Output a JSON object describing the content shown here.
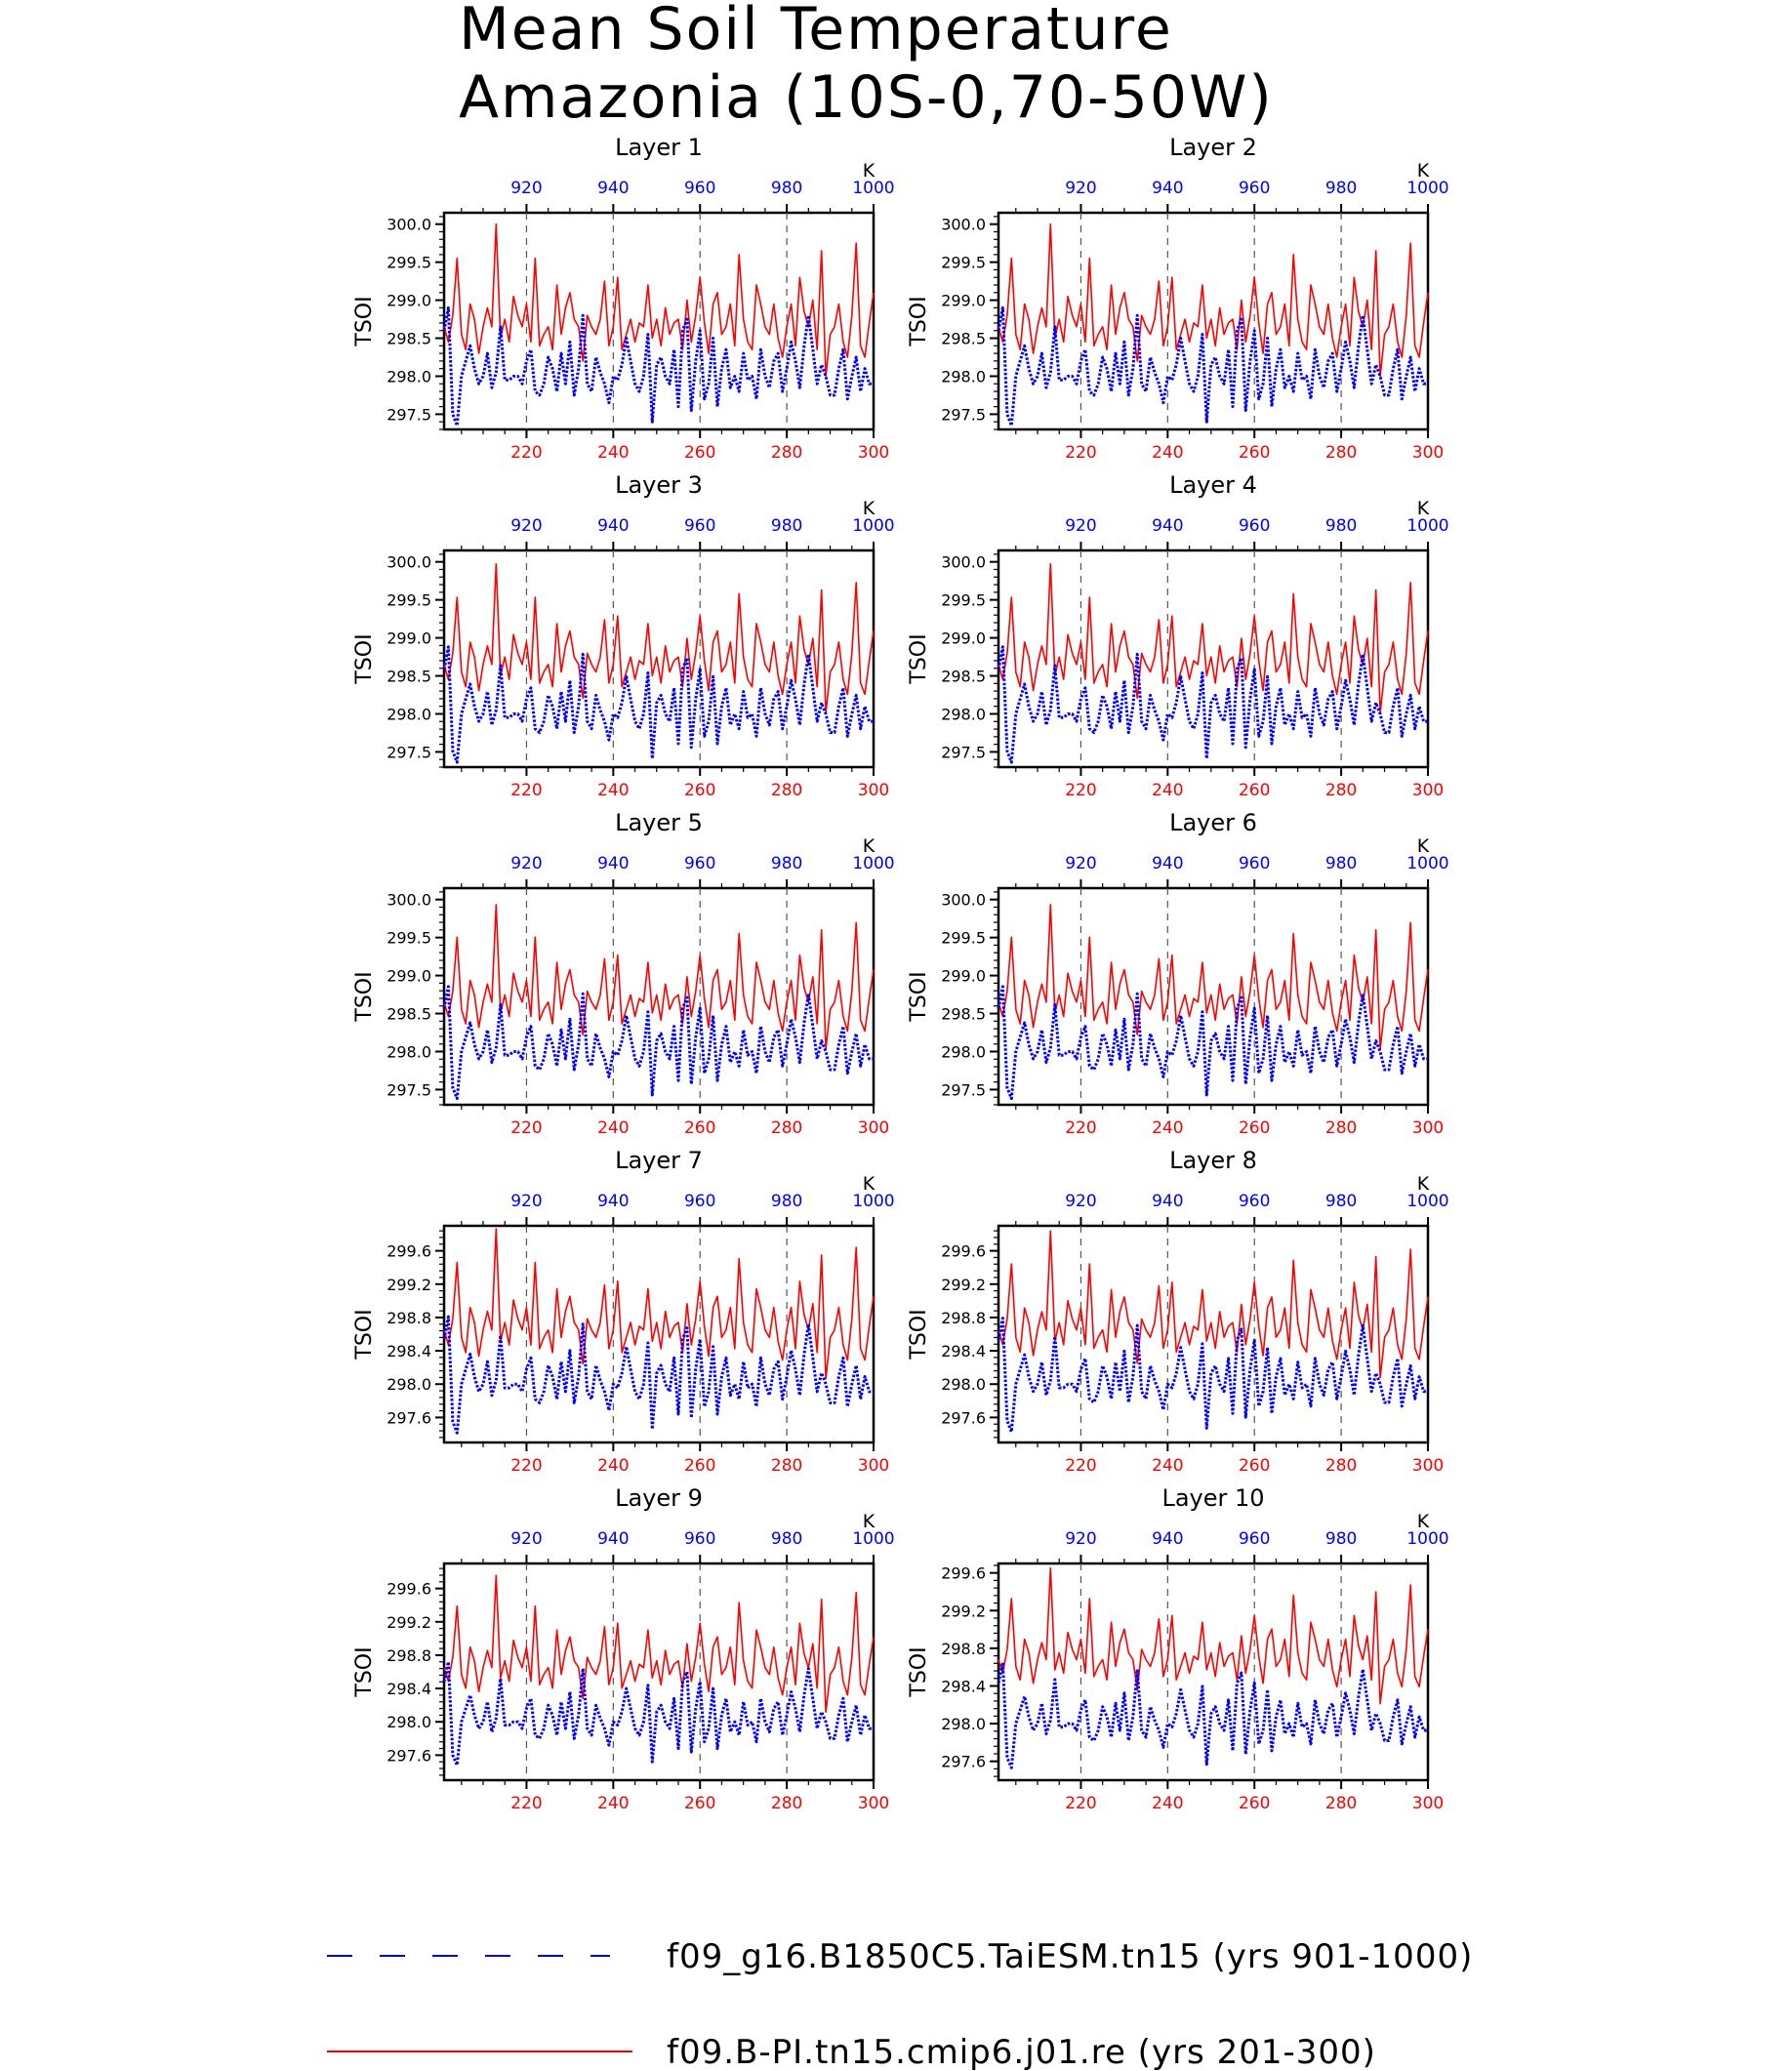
{
  "title": {
    "line1": "Mean Soil Temperature",
    "line2": "Amazonia (10S-0,70-50W)"
  },
  "legend": [
    {
      "label": "f09_g16.B1850C5.TaiESM.tn15 (yrs 901-1000)",
      "color": "#0000ff",
      "style": "dashed"
    },
    {
      "label": "f09.B-PI.tn15.cmip6.j01.re (yrs 201-300)",
      "color": "#ff0000",
      "style": "solid"
    }
  ],
  "chart_data": [
    {
      "type": "line",
      "title": "Layer 1",
      "ylabel": "TSOI",
      "unit_label": "K",
      "ylim": [
        297.3,
        300.15
      ],
      "yticks": [
        297.5,
        298.0,
        298.5,
        299.0,
        299.5,
        300.0
      ],
      "ytick_labels": [
        "297.5",
        "298.0",
        "298.5",
        "299.0",
        "299.5",
        "300.0"
      ],
      "xlim": [
        201,
        300
      ],
      "xticks": [
        220,
        240,
        260,
        280,
        300
      ],
      "x2lim": [
        901,
        1000
      ],
      "x2ticks": [
        920,
        940,
        960,
        980,
        1000
      ],
      "red_base": 298.65,
      "red_amp": 1.0,
      "blue_base": 298.0,
      "blue_amp": 1.0
    },
    {
      "type": "line",
      "title": "Layer 2",
      "ylabel": "TSOI",
      "unit_label": "K",
      "ylim": [
        297.3,
        300.15
      ],
      "yticks": [
        297.5,
        298.0,
        298.5,
        299.0,
        299.5,
        300.0
      ],
      "ytick_labels": [
        "297.5",
        "298.0",
        "298.5",
        "299.0",
        "299.5",
        "300.0"
      ],
      "xlim": [
        201,
        300
      ],
      "xticks": [
        220,
        240,
        260,
        280,
        300
      ],
      "x2lim": [
        901,
        1000
      ],
      "x2ticks": [
        920,
        940,
        960,
        980,
        1000
      ],
      "red_base": 298.65,
      "red_amp": 1.0,
      "blue_base": 298.0,
      "blue_amp": 1.0
    },
    {
      "type": "line",
      "title": "Layer 3",
      "ylabel": "TSOI",
      "unit_label": "K",
      "ylim": [
        297.3,
        300.15
      ],
      "yticks": [
        297.5,
        298.0,
        298.5,
        299.0,
        299.5,
        300.0
      ],
      "ytick_labels": [
        "297.5",
        "298.0",
        "298.5",
        "299.0",
        "299.5",
        "300.0"
      ],
      "xlim": [
        201,
        300
      ],
      "xticks": [
        220,
        240,
        260,
        280,
        300
      ],
      "x2lim": [
        901,
        1000
      ],
      "x2ticks": [
        920,
        940,
        960,
        980,
        1000
      ],
      "red_base": 298.65,
      "red_amp": 0.98,
      "blue_base": 298.0,
      "blue_amp": 0.98
    },
    {
      "type": "line",
      "title": "Layer 4",
      "ylabel": "TSOI",
      "unit_label": "K",
      "ylim": [
        297.3,
        300.15
      ],
      "yticks": [
        297.5,
        298.0,
        298.5,
        299.0,
        299.5,
        300.0
      ],
      "ytick_labels": [
        "297.5",
        "298.0",
        "298.5",
        "299.0",
        "299.5",
        "300.0"
      ],
      "xlim": [
        201,
        300
      ],
      "xticks": [
        220,
        240,
        260,
        280,
        300
      ],
      "x2lim": [
        901,
        1000
      ],
      "x2ticks": [
        920,
        940,
        960,
        980,
        1000
      ],
      "red_base": 298.65,
      "red_amp": 0.98,
      "blue_base": 298.0,
      "blue_amp": 0.98
    },
    {
      "type": "line",
      "title": "Layer 5",
      "ylabel": "TSOI",
      "unit_label": "K",
      "ylim": [
        297.3,
        300.15
      ],
      "yticks": [
        297.5,
        298.0,
        298.5,
        299.0,
        299.5,
        300.0
      ],
      "ytick_labels": [
        "297.5",
        "298.0",
        "298.5",
        "299.0",
        "299.5",
        "300.0"
      ],
      "xlim": [
        201,
        300
      ],
      "xticks": [
        220,
        240,
        260,
        280,
        300
      ],
      "x2lim": [
        901,
        1000
      ],
      "x2ticks": [
        920,
        940,
        960,
        980,
        1000
      ],
      "red_base": 298.65,
      "red_amp": 0.95,
      "blue_base": 298.0,
      "blue_amp": 0.95
    },
    {
      "type": "line",
      "title": "Layer 6",
      "ylabel": "TSOI",
      "unit_label": "K",
      "ylim": [
        297.3,
        300.15
      ],
      "yticks": [
        297.5,
        298.0,
        298.5,
        299.0,
        299.5,
        300.0
      ],
      "ytick_labels": [
        "297.5",
        "298.0",
        "298.5",
        "299.0",
        "299.5",
        "300.0"
      ],
      "xlim": [
        201,
        300
      ],
      "xticks": [
        220,
        240,
        260,
        280,
        300
      ],
      "x2lim": [
        901,
        1000
      ],
      "x2ticks": [
        920,
        940,
        960,
        980,
        1000
      ],
      "red_base": 298.65,
      "red_amp": 0.95,
      "blue_base": 298.0,
      "blue_amp": 0.95
    },
    {
      "type": "line",
      "title": "Layer 7",
      "ylabel": "TSOI",
      "unit_label": "K",
      "ylim": [
        297.3,
        299.9
      ],
      "yticks": [
        297.6,
        298.0,
        298.4,
        298.8,
        299.2,
        299.6
      ],
      "ytick_labels": [
        "297.6",
        "298.0",
        "298.4",
        "298.8",
        "299.2",
        "299.6"
      ],
      "xlim": [
        201,
        300
      ],
      "xticks": [
        220,
        240,
        260,
        280,
        300
      ],
      "x2lim": [
        901,
        1000
      ],
      "x2ticks": [
        920,
        940,
        960,
        980,
        1000
      ],
      "red_base": 298.65,
      "red_amp": 0.9,
      "blue_base": 298.0,
      "blue_amp": 0.9
    },
    {
      "type": "line",
      "title": "Layer 8",
      "ylabel": "TSOI",
      "unit_label": "K",
      "ylim": [
        297.3,
        299.9
      ],
      "yticks": [
        297.6,
        298.0,
        298.4,
        298.8,
        299.2,
        299.6
      ],
      "ytick_labels": [
        "297.6",
        "298.0",
        "298.4",
        "298.8",
        "299.2",
        "299.6"
      ],
      "xlim": [
        201,
        300
      ],
      "xticks": [
        220,
        240,
        260,
        280,
        300
      ],
      "x2lim": [
        901,
        1000
      ],
      "x2ticks": [
        920,
        940,
        960,
        980,
        1000
      ],
      "red_base": 298.65,
      "red_amp": 0.88,
      "blue_base": 298.0,
      "blue_amp": 0.88
    },
    {
      "type": "line",
      "title": "Layer 9",
      "ylabel": "TSOI",
      "unit_label": "K",
      "ylim": [
        297.3,
        299.9
      ],
      "yticks": [
        297.6,
        298.0,
        298.4,
        298.8,
        299.2,
        299.6
      ],
      "ytick_labels": [
        "297.6",
        "298.0",
        "298.4",
        "298.8",
        "299.2",
        "299.6"
      ],
      "xlim": [
        201,
        300
      ],
      "xticks": [
        220,
        240,
        260,
        280,
        300
      ],
      "x2lim": [
        901,
        1000
      ],
      "x2ticks": [
        920,
        940,
        960,
        980,
        1000
      ],
      "red_base": 298.65,
      "red_amp": 0.82,
      "blue_base": 298.0,
      "blue_amp": 0.8
    },
    {
      "type": "line",
      "title": "Layer 10",
      "ylabel": "TSOI",
      "unit_label": "K",
      "ylim": [
        297.4,
        299.7
      ],
      "yticks": [
        297.6,
        298.0,
        298.4,
        298.8,
        299.2,
        299.6
      ],
      "ytick_labels": [
        "297.6",
        "298.0",
        "298.4",
        "298.8",
        "299.2",
        "299.6"
      ],
      "xlim": [
        201,
        300
      ],
      "xticks": [
        220,
        240,
        260,
        280,
        300
      ],
      "x2lim": [
        901,
        1000
      ],
      "x2ticks": [
        920,
        940,
        960,
        980,
        1000
      ],
      "red_base": 298.68,
      "red_amp": 0.72,
      "blue_base": 298.0,
      "blue_amp": 0.72
    }
  ],
  "anomaly_pattern_red": [
    0.0,
    -0.2,
    0.15,
    0.9,
    -0.1,
    -0.3,
    0.3,
    0.1,
    -0.35,
    0.0,
    0.25,
    0.0,
    1.35,
    -0.15,
    0.1,
    -0.2,
    0.4,
    0.15,
    0.0,
    0.3,
    -0.2,
    0.9,
    -0.25,
    -0.1,
    0.0,
    -0.3,
    0.55,
    -0.1,
    0.25,
    0.45,
    0.1,
    0.0,
    -0.45,
    0.15,
    0.0,
    -0.1,
    0.1,
    0.6,
    -0.25,
    0.0,
    0.65,
    -0.3,
    -0.1,
    0.1,
    -0.2,
    0.05,
    0.0,
    0.55,
    -0.15,
    0.1,
    -0.25,
    0.25,
    -0.1,
    0.05,
    0.1,
    -0.3,
    0.35,
    -0.2,
    0.15,
    0.65,
    0.05,
    -0.35,
    0.3,
    0.45,
    -0.1,
    0.0,
    0.3,
    -0.25,
    0.95,
    0.1,
    -0.2,
    -0.3,
    0.55,
    0.3,
    0.0,
    -0.1,
    0.3,
    -0.15,
    -0.4,
    0.0,
    0.3,
    -0.25,
    0.65,
    0.2,
    0.0,
    0.35,
    -0.3,
    1.0,
    -0.65,
    -0.1,
    0.0,
    0.3,
    -0.2,
    -0.4,
    0.15,
    1.1,
    -0.25,
    -0.4,
    0.05,
    0.45,
    0.0,
    0.0
  ],
  "anomaly_pattern_blue": [
    0.6,
    0.9,
    -0.5,
    -0.65,
    0.0,
    0.2,
    0.4,
    0.1,
    -0.1,
    0.0,
    0.3,
    -0.15,
    0.05,
    0.65,
    -0.05,
    -0.05,
    0.0,
    0.0,
    -0.1,
    0.2,
    0.35,
    -0.2,
    -0.25,
    -0.1,
    0.25,
    0.1,
    -0.2,
    0.3,
    -0.1,
    0.45,
    -0.25,
    0.1,
    0.8,
    -0.1,
    -0.2,
    0.25,
    0.05,
    -0.1,
    -0.35,
    0.0,
    -0.05,
    0.15,
    0.5,
    0.2,
    -0.1,
    -0.2,
    0.0,
    0.55,
    -0.6,
    0.15,
    0.25,
    0.0,
    -0.1,
    0.35,
    -0.4,
    0.6,
    0.75,
    -0.45,
    0.2,
    0.6,
    -0.3,
    -0.1,
    0.5,
    -0.4,
    0.1,
    0.35,
    -0.15,
    0.0,
    -0.2,
    0.3,
    -0.05,
    0.0,
    -0.3,
    0.35,
    0.0,
    -0.15,
    0.2,
    0.3,
    -0.2,
    0.1,
    0.45,
    0.2,
    -0.15,
    0.4,
    0.8,
    0.35,
    -0.1,
    0.15,
    0.0,
    -0.25,
    -0.25,
    0.1,
    0.35,
    -0.3,
    0.0,
    0.25,
    -0.2,
    0.1,
    -0.1,
    -0.1,
    0.0,
    0.0
  ]
}
